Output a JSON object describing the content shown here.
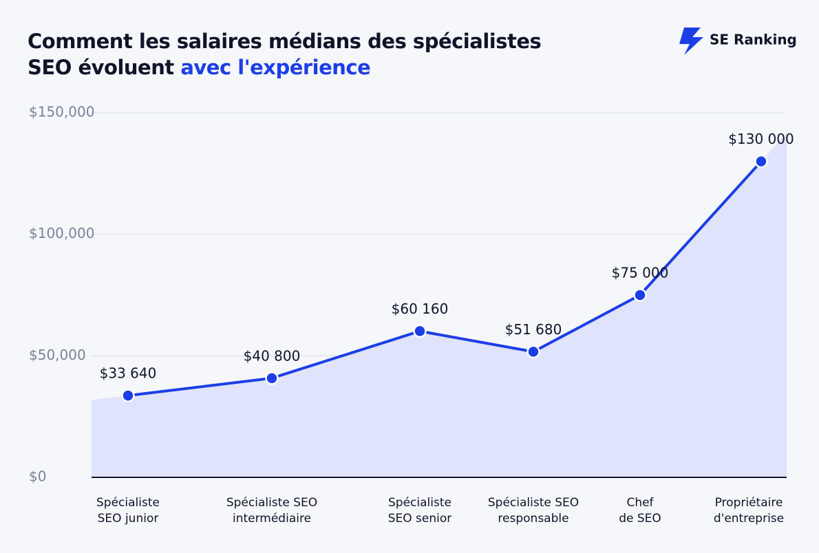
{
  "chart_data": {
    "type": "line",
    "title_line1": "Comment les salaires médians des spécialistes",
    "title_line2": "SEO évoluent",
    "title_highlight": "avec l'expérience",
    "brand": "SE Ranking",
    "categories": [
      "Spécialiste\nSEO junior",
      "Spécialiste SEO\nintermédiaire",
      "Spécialiste\nSEO senior",
      "Spécialiste SEO\nresponsable",
      "Chef\nde SEO",
      "Propriétaire\nd'entreprise"
    ],
    "series": [
      {
        "name": "Salaire médian",
        "color": "#1c3ee6",
        "values": [
          33640,
          40800,
          60160,
          51680,
          75000,
          130000
        ],
        "value_labels": [
          "$33 640",
          "$40 800",
          "$60 160",
          "$51 680",
          "$75 000",
          "$130 000"
        ]
      }
    ],
    "ylim": [
      0,
      150000
    ],
    "yticks": [
      {
        "value": 0,
        "label": "$0"
      },
      {
        "value": 50000,
        "label": "$50,000"
      },
      {
        "value": 100000,
        "label": "$100,000"
      },
      {
        "value": 150000,
        "label": "$150,000"
      }
    ],
    "grid": true
  }
}
